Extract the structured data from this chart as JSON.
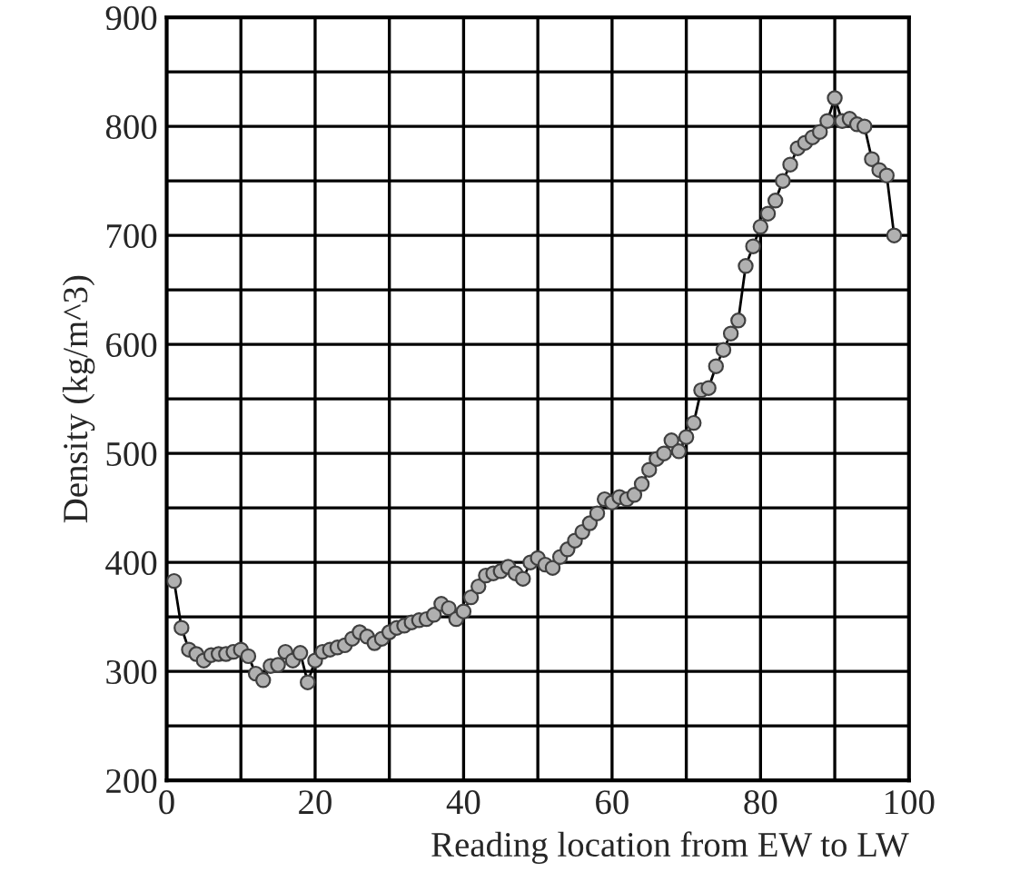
{
  "chart_data": {
    "type": "line",
    "xlabel": "Reading location from EW to LW",
    "ylabel": "Density (kg/m^3)",
    "x": [
      1,
      2,
      3,
      4,
      5,
      6,
      7,
      8,
      9,
      10,
      11,
      12,
      13,
      14,
      15,
      16,
      17,
      18,
      19,
      20,
      21,
      22,
      23,
      24,
      25,
      26,
      27,
      28,
      29,
      30,
      31,
      32,
      33,
      34,
      35,
      36,
      37,
      38,
      39,
      40,
      41,
      42,
      43,
      44,
      45,
      46,
      47,
      48,
      49,
      50,
      51,
      52,
      53,
      54,
      55,
      56,
      57,
      58,
      59,
      60,
      61,
      62,
      63,
      64,
      65,
      66,
      67,
      68,
      69,
      70,
      71,
      72,
      73,
      74,
      75,
      76,
      77,
      78,
      79,
      80,
      81,
      82,
      83,
      84,
      85,
      86,
      87,
      88,
      89,
      90,
      91,
      92,
      93,
      94,
      95,
      96,
      97,
      98
    ],
    "series": [
      {
        "color": "#b0b0b0",
        "values": [
          383,
          340,
          320,
          316,
          310,
          315,
          316,
          316,
          318,
          320,
          314,
          298,
          292,
          305,
          306,
          318,
          310,
          317,
          290,
          310,
          318,
          320,
          322,
          324,
          330,
          336,
          332,
          326,
          330,
          336,
          340,
          342,
          345,
          347,
          348,
          352,
          362,
          358,
          348,
          355,
          368,
          378,
          388,
          390,
          392,
          396,
          390,
          385,
          400,
          404,
          398,
          395,
          405,
          412,
          420,
          428,
          436,
          445,
          458,
          455,
          460,
          458,
          462,
          472,
          485,
          495,
          500,
          512,
          502,
          515,
          528,
          558,
          560,
          580,
          595,
          610,
          622,
          672,
          690,
          708,
          720,
          732,
          750,
          765,
          780,
          785,
          790,
          795,
          805,
          826,
          805,
          807,
          802,
          800,
          770,
          760,
          755,
          700
        ]
      }
    ],
    "xlim": [
      0,
      100
    ],
    "ylim": [
      200,
      900
    ],
    "xticks": [
      0,
      {
        "value": 10,
        "label": null
      },
      20,
      {
        "value": 30,
        "label": null
      },
      40,
      {
        "value": 50,
        "label": null
      },
      60,
      {
        "value": 70,
        "label": null
      },
      80,
      {
        "value": 90,
        "label": null
      },
      100
    ],
    "yticks": [
      200,
      {
        "value": 250,
        "label": null
      },
      300,
      {
        "value": 350,
        "label": null
      },
      400,
      {
        "value": 450,
        "label": null
      },
      500,
      {
        "value": 550,
        "label": null
      },
      600,
      {
        "value": 650,
        "label": null
      },
      700,
      {
        "value": 750,
        "label": null
      },
      800,
      {
        "value": 850,
        "label": null
      },
      900
    ],
    "grid": true,
    "marker": "circle",
    "line_style": "solid",
    "legend": false
  }
}
